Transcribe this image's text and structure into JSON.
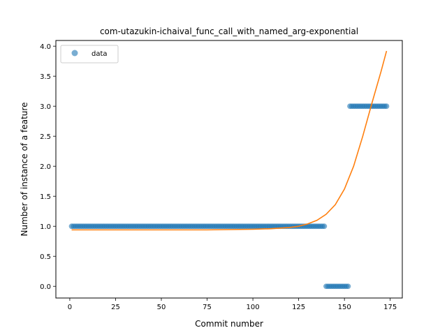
{
  "chart_data": {
    "type": "scatter",
    "title": "com-utazukin-ichaival_func_call_with_named_arg-exponential",
    "xlabel": "Commit number",
    "ylabel": "Number of instance of a feature",
    "xlim": [
      -7.6,
      181.6
    ],
    "ylim": [
      -0.195,
      4.095
    ],
    "xticks": [
      0,
      25,
      50,
      75,
      100,
      125,
      150,
      175
    ],
    "yticks": [
      0.0,
      0.5,
      1.0,
      1.5,
      2.0,
      2.5,
      3.0,
      3.5,
      4.0
    ],
    "ytick_labels": [
      "0.0",
      "0.5",
      "1.0",
      "1.5",
      "2.0",
      "2.5",
      "3.0",
      "3.5",
      "4.0"
    ],
    "legend": {
      "position": "top-left",
      "entries": [
        "data"
      ]
    },
    "grid": false,
    "series": [
      {
        "name": "data",
        "kind": "scatter",
        "color": "#1f77b4",
        "segments": [
          {
            "x_start": 1,
            "x_end": 139,
            "y": 1
          },
          {
            "x_start": 140,
            "x_end": 152,
            "y": 0
          },
          {
            "x_start": 153,
            "x_end": 173,
            "y": 3
          }
        ]
      },
      {
        "kind": "line",
        "color": "#ff7f0e",
        "x": [
          1,
          25,
          50,
          75,
          100,
          110,
          120,
          125,
          130,
          135,
          140,
          145,
          150,
          155,
          160,
          165,
          170,
          173
        ],
        "y": [
          0.94,
          0.94,
          0.94,
          0.94,
          0.95,
          0.96,
          0.98,
          1.0,
          1.04,
          1.1,
          1.2,
          1.36,
          1.62,
          2.0,
          2.5,
          3.05,
          3.58,
          3.92
        ]
      }
    ]
  }
}
